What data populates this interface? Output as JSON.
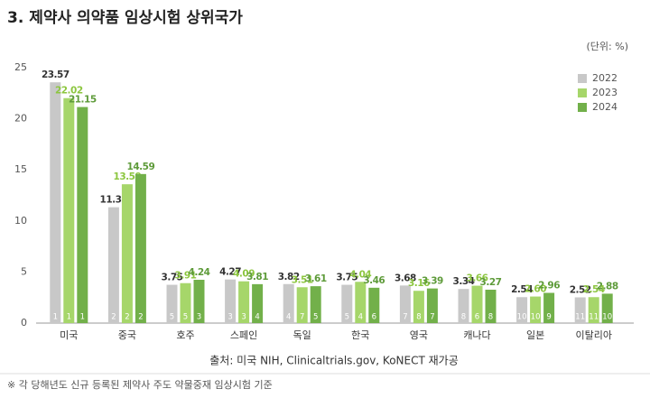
{
  "chart_data": {
    "type": "bar",
    "title": "3. 제약사 의약품 임상시험 상위국가",
    "unit_label": "(단위: %)",
    "source": "출처: 미국 NIH, Clinicaltrials.gov, KoNECT 재가공",
    "note": "※ 각 당해년도 신규 등록된 제약사 주도 약물중재 임상시험 기준",
    "categories": [
      "미국",
      "중국",
      "호주",
      "스페인",
      "독일",
      "한국",
      "영국",
      "캐나다",
      "일본",
      "이탈리아"
    ],
    "series": [
      {
        "name": "2022",
        "color": "#c8c8c8",
        "label_color": "#333333",
        "values": [
          23.57,
          11.34,
          3.75,
          4.27,
          3.82,
          3.75,
          3.68,
          3.34,
          2.54,
          2.52
        ],
        "value_labels": [
          "23.57",
          "11.34",
          "3.75",
          "4.27",
          "3.82",
          "3.75",
          "3.68",
          "3.34",
          "2.54",
          "2.52"
        ],
        "ranks": [
          1,
          2,
          5,
          3,
          4,
          5,
          7,
          8,
          10,
          11
        ]
      },
      {
        "name": "2023",
        "color": "#a6d66a",
        "label_color": "#8cc63f",
        "values": [
          22.02,
          13.59,
          3.91,
          4.09,
          3.51,
          4.04,
          3.16,
          3.66,
          2.6,
          2.54
        ],
        "value_labels": [
          "22.02",
          "13.59",
          "3.91",
          "4.09",
          "3.51",
          "4.04",
          "3.16",
          "3.66",
          "2.60",
          "2.54"
        ],
        "ranks": [
          1,
          2,
          5,
          3,
          7,
          4,
          8,
          6,
          10,
          11
        ]
      },
      {
        "name": "2024",
        "color": "#72b04a",
        "label_color": "#5e9b3a",
        "values": [
          21.15,
          14.59,
          4.24,
          3.81,
          3.61,
          3.46,
          3.39,
          3.27,
          2.96,
          2.88
        ],
        "value_labels": [
          "21.15",
          "14.59",
          "4.24",
          "3.81",
          "3.61",
          "3.46",
          "3.39",
          "3.27",
          "2.96",
          "2.88"
        ],
        "ranks": [
          1,
          2,
          3,
          4,
          5,
          6,
          7,
          8,
          9,
          10
        ]
      }
    ],
    "ylim": [
      0,
      25
    ],
    "yticks": [
      0,
      5,
      10,
      15,
      20,
      25
    ],
    "grid": false,
    "legend": "top-right"
  }
}
